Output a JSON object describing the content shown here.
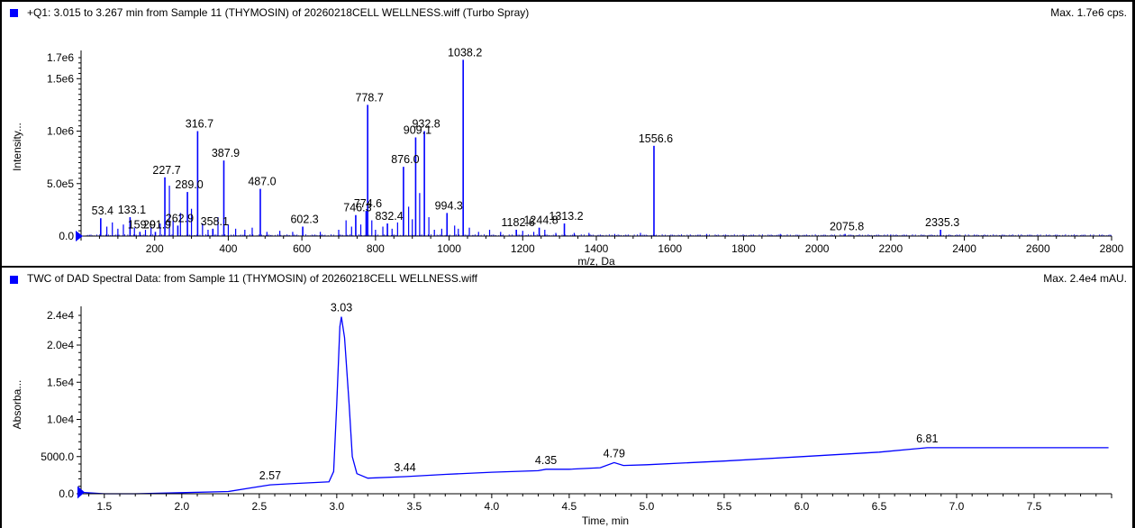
{
  "colors": {
    "trace": "#0000ff",
    "legend": "#0000ff",
    "axis": "#000000"
  },
  "chart_data": [
    {
      "type": "bar",
      "name": "ms-spectrum",
      "title": "+Q1: 3.015 to 3.267 min from Sample 11 (THYMOSIN) of 20260218CELL WELLNESS.wiff (Turbo Spray)",
      "max_label": "Max. 1.7e6 cps.",
      "xlabel": "m/z, Da",
      "ylabel": "Intensity...",
      "xlim": [
        0,
        2800
      ],
      "ylim": [
        0,
        1700000.0
      ],
      "x_ticks": [
        200,
        400,
        600,
        800,
        1000,
        1200,
        1400,
        1600,
        1800,
        2000,
        2200,
        2400,
        2600,
        2800
      ],
      "y_ticks": [
        {
          "v": 0,
          "label": "0.0"
        },
        {
          "v": 500000,
          "label": "5.0e5"
        },
        {
          "v": 1000000,
          "label": "1.0e6"
        },
        {
          "v": 1500000,
          "label": "1.5e6"
        },
        {
          "v": 1700000,
          "label": "1.7e6"
        }
      ],
      "peaks": [
        {
          "x": 53.4,
          "y": 170000,
          "label": "53.4"
        },
        {
          "x": 133.1,
          "y": 180000,
          "label": "133.1"
        },
        {
          "x": 159.9,
          "y": 40000,
          "label": "159.9"
        },
        {
          "x": 201.9,
          "y": 40000,
          "label": "201.9"
        },
        {
          "x": 227.7,
          "y": 560000,
          "label": "227.7"
        },
        {
          "x": 262.9,
          "y": 100000,
          "label": "262.9"
        },
        {
          "x": 289.0,
          "y": 420000,
          "label": "289.0"
        },
        {
          "x": 316.7,
          "y": 1000000,
          "label": "316.7"
        },
        {
          "x": 358.1,
          "y": 70000,
          "label": "358.1"
        },
        {
          "x": 387.9,
          "y": 720000,
          "label": "387.9"
        },
        {
          "x": 487.0,
          "y": 450000,
          "label": "487.0"
        },
        {
          "x": 602.3,
          "y": 90000,
          "label": "602.3"
        },
        {
          "x": 746.3,
          "y": 200000,
          "label": "746.3"
        },
        {
          "x": 774.6,
          "y": 240000,
          "label": "774.6"
        },
        {
          "x": 778.7,
          "y": 1250000,
          "label": "778.7"
        },
        {
          "x": 832.4,
          "y": 120000,
          "label": "832.4"
        },
        {
          "x": 876.0,
          "y": 660000,
          "label": "876.0"
        },
        {
          "x": 909.1,
          "y": 940000,
          "label": "909.1"
        },
        {
          "x": 932.8,
          "y": 1000000,
          "label": "932.8"
        },
        {
          "x": 994.3,
          "y": 220000,
          "label": "994.3"
        },
        {
          "x": 1038.2,
          "y": 1680000,
          "label": "1038.2"
        },
        {
          "x": 1182.6,
          "y": 60000,
          "label": "1182.6"
        },
        {
          "x": 1244.8,
          "y": 80000,
          "label": "1244.8"
        },
        {
          "x": 1313.2,
          "y": 120000,
          "label": "1313.2"
        },
        {
          "x": 1556.6,
          "y": 860000,
          "label": "1556.6"
        },
        {
          "x": 2075.8,
          "y": 20000,
          "label": "2075.8"
        },
        {
          "x": 2335.3,
          "y": 60000,
          "label": "2335.3"
        }
      ],
      "minor_peaks": [
        {
          "x": 70,
          "y": 90000
        },
        {
          "x": 85,
          "y": 130000
        },
        {
          "x": 100,
          "y": 70000
        },
        {
          "x": 115,
          "y": 110000
        },
        {
          "x": 145,
          "y": 80000
        },
        {
          "x": 175,
          "y": 60000
        },
        {
          "x": 190,
          "y": 90000
        },
        {
          "x": 215,
          "y": 120000
        },
        {
          "x": 240,
          "y": 480000
        },
        {
          "x": 250,
          "y": 150000
        },
        {
          "x": 270,
          "y": 220000
        },
        {
          "x": 300,
          "y": 260000
        },
        {
          "x": 330,
          "y": 120000
        },
        {
          "x": 345,
          "y": 60000
        },
        {
          "x": 372,
          "y": 180000
        },
        {
          "x": 400,
          "y": 110000
        },
        {
          "x": 420,
          "y": 70000
        },
        {
          "x": 445,
          "y": 60000
        },
        {
          "x": 465,
          "y": 80000
        },
        {
          "x": 505,
          "y": 40000
        },
        {
          "x": 540,
          "y": 50000
        },
        {
          "x": 575,
          "y": 40000
        },
        {
          "x": 650,
          "y": 40000
        },
        {
          "x": 700,
          "y": 60000
        },
        {
          "x": 720,
          "y": 150000
        },
        {
          "x": 735,
          "y": 90000
        },
        {
          "x": 760,
          "y": 110000
        },
        {
          "x": 790,
          "y": 150000
        },
        {
          "x": 800,
          "y": 60000
        },
        {
          "x": 820,
          "y": 90000
        },
        {
          "x": 845,
          "y": 70000
        },
        {
          "x": 860,
          "y": 130000
        },
        {
          "x": 890,
          "y": 280000
        },
        {
          "x": 900,
          "y": 160000
        },
        {
          "x": 920,
          "y": 410000
        },
        {
          "x": 945,
          "y": 180000
        },
        {
          "x": 960,
          "y": 60000
        },
        {
          "x": 980,
          "y": 70000
        },
        {
          "x": 1015,
          "y": 100000
        },
        {
          "x": 1025,
          "y": 70000
        },
        {
          "x": 1055,
          "y": 80000
        },
        {
          "x": 1080,
          "y": 40000
        },
        {
          "x": 1110,
          "y": 60000
        },
        {
          "x": 1140,
          "y": 40000
        },
        {
          "x": 1200,
          "y": 50000
        },
        {
          "x": 1230,
          "y": 40000
        },
        {
          "x": 1260,
          "y": 60000
        },
        {
          "x": 1290,
          "y": 30000
        },
        {
          "x": 1340,
          "y": 30000
        },
        {
          "x": 1380,
          "y": 30000
        },
        {
          "x": 1450,
          "y": 20000
        },
        {
          "x": 1520,
          "y": 30000
        },
        {
          "x": 1700,
          "y": 20000
        },
        {
          "x": 1900,
          "y": 20000
        },
        {
          "x": 2200,
          "y": 15000
        }
      ]
    },
    {
      "type": "line",
      "name": "dad-chromatogram",
      "title": "TWC of DAD Spectral Data: from Sample 11 (THYMOSIN) of 20260218CELL WELLNESS.wiff",
      "max_label": "Max. 2.4e4 mAU.",
      "xlabel": "Time, min",
      "ylabel": "Absorba...",
      "xlim": [
        1.35,
        8.0
      ],
      "ylim": [
        0,
        24000
      ],
      "x_ticks": [
        {
          "v": 1.5,
          "label": "1.5"
        },
        {
          "v": 2.0,
          "label": "2.0"
        },
        {
          "v": 2.5,
          "label": "2.5"
        },
        {
          "v": 3.0,
          "label": "3.0"
        },
        {
          "v": 3.5,
          "label": "3.5"
        },
        {
          "v": 4.0,
          "label": "4.0"
        },
        {
          "v": 4.5,
          "label": "4.5"
        },
        {
          "v": 5.0,
          "label": "5.0"
        },
        {
          "v": 5.5,
          "label": "5.5"
        },
        {
          "v": 6.0,
          "label": "6.0"
        },
        {
          "v": 6.5,
          "label": "6.5"
        },
        {
          "v": 7.0,
          "label": "7.0"
        },
        {
          "v": 7.5,
          "label": "7.5"
        }
      ],
      "y_ticks": [
        {
          "v": 0,
          "label": "0.0"
        },
        {
          "v": 5000,
          "label": "5000.0"
        },
        {
          "v": 10000,
          "label": "1.0e4"
        },
        {
          "v": 15000,
          "label": "1.5e4"
        },
        {
          "v": 20000,
          "label": "2.0e4"
        },
        {
          "v": 24000,
          "label": "2.4e4"
        }
      ],
      "points": [
        [
          1.35,
          200
        ],
        [
          1.5,
          0
        ],
        [
          1.7,
          0
        ],
        [
          2.0,
          150
        ],
        [
          2.3,
          300
        ],
        [
          2.45,
          800
        ],
        [
          2.57,
          1200
        ],
        [
          2.7,
          1350
        ],
        [
          2.85,
          1500
        ],
        [
          2.95,
          1600
        ],
        [
          2.98,
          3000
        ],
        [
          3.0,
          12000
        ],
        [
          3.02,
          22500
        ],
        [
          3.03,
          23800
        ],
        [
          3.05,
          21000
        ],
        [
          3.08,
          12000
        ],
        [
          3.1,
          5000
        ],
        [
          3.13,
          2700
        ],
        [
          3.2,
          2100
        ],
        [
          3.44,
          2300
        ],
        [
          3.7,
          2600
        ],
        [
          4.0,
          2900
        ],
        [
          4.3,
          3100
        ],
        [
          4.35,
          3300
        ],
        [
          4.5,
          3300
        ],
        [
          4.7,
          3500
        ],
        [
          4.79,
          4200
        ],
        [
          4.85,
          3800
        ],
        [
          5.0,
          3900
        ],
        [
          5.5,
          4400
        ],
        [
          6.0,
          5000
        ],
        [
          6.5,
          5600
        ],
        [
          6.81,
          6200
        ],
        [
          7.0,
          6200
        ],
        [
          7.5,
          6200
        ],
        [
          7.98,
          6200
        ]
      ],
      "peak_labels": [
        {
          "x": 2.57,
          "y": 1200,
          "label": "2.57"
        },
        {
          "x": 3.03,
          "y": 23800,
          "label": "3.03"
        },
        {
          "x": 3.44,
          "y": 2300,
          "label": "3.44"
        },
        {
          "x": 4.35,
          "y": 3300,
          "label": "4.35"
        },
        {
          "x": 4.79,
          "y": 4200,
          "label": "4.79"
        },
        {
          "x": 6.81,
          "y": 6200,
          "label": "6.81"
        }
      ]
    }
  ]
}
